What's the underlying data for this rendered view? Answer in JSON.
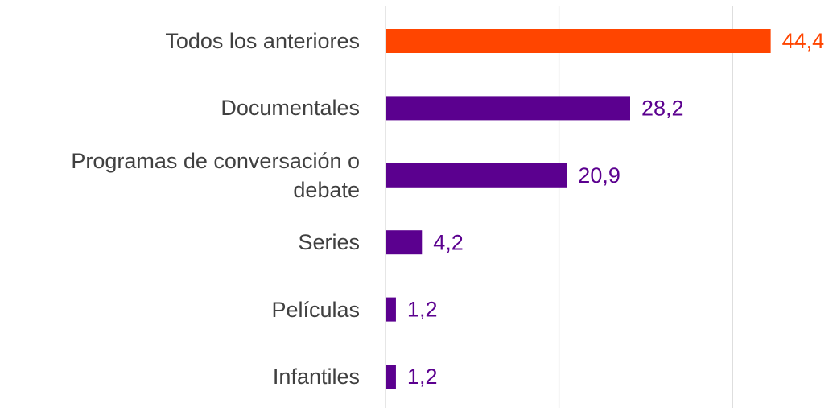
{
  "chart_data": {
    "type": "barh",
    "categories": [
      "Todos los anteriores",
      "Documentales",
      "Programas de conversación o debate",
      "Series",
      "Películas",
      "Infantiles"
    ],
    "values": [
      44.4,
      28.2,
      20.9,
      4.2,
      1.2,
      1.2
    ],
    "value_labels": [
      "44,4",
      "28,2",
      "20,9",
      "4,2",
      "1,2",
      "1,2"
    ],
    "colors": [
      "#ff4500",
      "#5b008f",
      "#5b008f",
      "#5b008f",
      "#5b008f",
      "#5b008f"
    ],
    "xlim": [
      0,
      50
    ],
    "xticks": [
      0,
      20,
      40
    ],
    "grid": true
  }
}
